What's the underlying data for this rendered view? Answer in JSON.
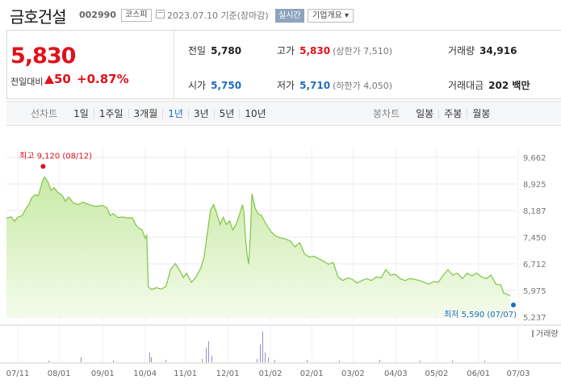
{
  "header": {
    "stock_name": "금호건설",
    "stock_code": "002990",
    "market": "코스피",
    "date_text": "2023.07.10 기준(장마감)",
    "realtime_label": "실시간",
    "overview_label": "기업개요 ▾"
  },
  "price": {
    "now": "5,830",
    "diff_label": "전일대비",
    "diff_value": "50",
    "diff_rate": "+0.87%"
  },
  "stats": {
    "prev_close_label": "전일",
    "prev_close": "5,780",
    "high_label": "고가",
    "high": "5,830",
    "upper_limit": "(상한가 7,510)",
    "volume_label": "거래량",
    "volume": "34,916",
    "open_label": "시가",
    "open": "5,750",
    "low_label": "저가",
    "low": "5,710",
    "lower_limit": "(하한가 4,050)",
    "amount_label": "거래대금",
    "amount": "202 백만"
  },
  "period_bar": {
    "line_chart_label": "선차트",
    "line_periods": [
      "1일",
      "1주일",
      "3개월",
      "1년",
      "3년",
      "5년",
      "10년"
    ],
    "selected": "1년",
    "candle_chart_label": "봉차트",
    "candle_periods": [
      "일봉",
      "주봉",
      "월봉"
    ]
  },
  "colors": {
    "up": "#e0111b",
    "down": "#1f6cc6",
    "line": "#86c84d",
    "fill_top": "#c9eaa6",
    "fill_bottom": "#f3fbeb"
  },
  "chart_data": {
    "type": "area",
    "y_ticks": [
      "9,662",
      "8,925",
      "8,187",
      "7,450",
      "6,712",
      "5,975",
      "5,237"
    ],
    "ylim": [
      5237,
      9662
    ],
    "x_ticks": [
      "07/11",
      "08/01",
      "09/01",
      "10/04",
      "11/01",
      "12/01",
      "01/02",
      "02/01",
      "03/02",
      "04/03",
      "05/02",
      "06/01",
      "07/03"
    ],
    "x_range": [
      "07/11",
      "07/10"
    ],
    "annotations": {
      "high_label": "최고 9,120 (08/12)",
      "high_value": 9120,
      "high_date": "08/12",
      "low_label": "최저 5,590 (07/07)",
      "low_value": 5590,
      "low_date": "07/07"
    },
    "volume_label": "거래량",
    "series": [
      {
        "values": [
          [
            0,
            7980
          ],
          [
            3,
            8010
          ],
          [
            5,
            7890
          ],
          [
            7,
            8000
          ],
          [
            10,
            8050
          ],
          [
            12,
            8230
          ],
          [
            14,
            8350
          ],
          [
            16,
            8550
          ],
          [
            18,
            8620
          ],
          [
            20,
            8600
          ],
          [
            22,
            8900
          ],
          [
            23,
            9050
          ],
          [
            24,
            9120
          ],
          [
            26,
            8980
          ],
          [
            28,
            8750
          ],
          [
            30,
            8820
          ],
          [
            32,
            8700
          ],
          [
            35,
            8600
          ],
          [
            37,
            8450
          ],
          [
            39,
            8560
          ],
          [
            42,
            8400
          ],
          [
            45,
            8350
          ],
          [
            48,
            8420
          ],
          [
            52,
            8350
          ],
          [
            56,
            8300
          ],
          [
            60,
            8330
          ],
          [
            63,
            8270
          ],
          [
            65,
            8050
          ],
          [
            67,
            8100
          ],
          [
            70,
            7990
          ],
          [
            73,
            8010
          ],
          [
            76,
            7980
          ],
          [
            79,
            7990
          ],
          [
            81,
            7800
          ],
          [
            83,
            7700
          ],
          [
            85,
            7660
          ],
          [
            87,
            7420
          ],
          [
            88,
            7500
          ],
          [
            89,
            6070
          ],
          [
            91,
            6000
          ],
          [
            94,
            6050
          ],
          [
            97,
            6010
          ],
          [
            100,
            6080
          ],
          [
            103,
            6550
          ],
          [
            106,
            6720
          ],
          [
            109,
            6500
          ],
          [
            111,
            6330
          ],
          [
            113,
            6450
          ],
          [
            116,
            6200
          ],
          [
            119,
            6350
          ],
          [
            122,
            6600
          ],
          [
            124,
            6900
          ],
          [
            126,
            7550
          ],
          [
            128,
            8200
          ],
          [
            130,
            8350
          ],
          [
            132,
            8100
          ],
          [
            134,
            7800
          ],
          [
            136,
            8000
          ],
          [
            138,
            7800
          ],
          [
            140,
            7900
          ],
          [
            142,
            7650
          ],
          [
            144,
            7800
          ],
          [
            146,
            8050
          ],
          [
            148,
            8350
          ],
          [
            149,
            8150
          ],
          [
            150,
            7400
          ],
          [
            151,
            6950
          ],
          [
            152,
            6700
          ],
          [
            153,
            7500
          ],
          [
            154,
            8650
          ],
          [
            156,
            8250
          ],
          [
            158,
            8100
          ],
          [
            160,
            8050
          ],
          [
            163,
            7800
          ],
          [
            166,
            7600
          ],
          [
            169,
            7480
          ],
          [
            172,
            7430
          ],
          [
            175,
            7400
          ],
          [
            178,
            7350
          ],
          [
            181,
            7180
          ],
          [
            184,
            7300
          ],
          [
            187,
            6980
          ],
          [
            190,
            6900
          ],
          [
            193,
            6920
          ],
          [
            196,
            6850
          ],
          [
            199,
            6780
          ],
          [
            202,
            6700
          ],
          [
            205,
            6750
          ],
          [
            208,
            6350
          ],
          [
            211,
            6250
          ],
          [
            214,
            6320
          ],
          [
            217,
            6280
          ],
          [
            220,
            6180
          ],
          [
            223,
            6250
          ],
          [
            226,
            6300
          ],
          [
            229,
            6250
          ],
          [
            232,
            6350
          ],
          [
            235,
            6320
          ],
          [
            238,
            6550
          ],
          [
            241,
            6400
          ],
          [
            244,
            6420
          ],
          [
            247,
            6300
          ],
          [
            250,
            6250
          ],
          [
            253,
            6300
          ],
          [
            256,
            6280
          ],
          [
            259,
            6250
          ],
          [
            262,
            6200
          ],
          [
            265,
            6150
          ],
          [
            268,
            6220
          ],
          [
            271,
            6200
          ],
          [
            274,
            6400
          ],
          [
            277,
            6550
          ],
          [
            280,
            6400
          ],
          [
            283,
            6450
          ],
          [
            286,
            6300
          ],
          [
            289,
            6450
          ],
          [
            292,
            6380
          ],
          [
            295,
            6450
          ],
          [
            298,
            6350
          ],
          [
            301,
            6300
          ],
          [
            304,
            6400
          ],
          [
            307,
            6150
          ],
          [
            310,
            6130
          ],
          [
            312,
            5900
          ],
          [
            314,
            5870
          ],
          [
            316,
            5830
          ]
        ]
      }
    ]
  }
}
